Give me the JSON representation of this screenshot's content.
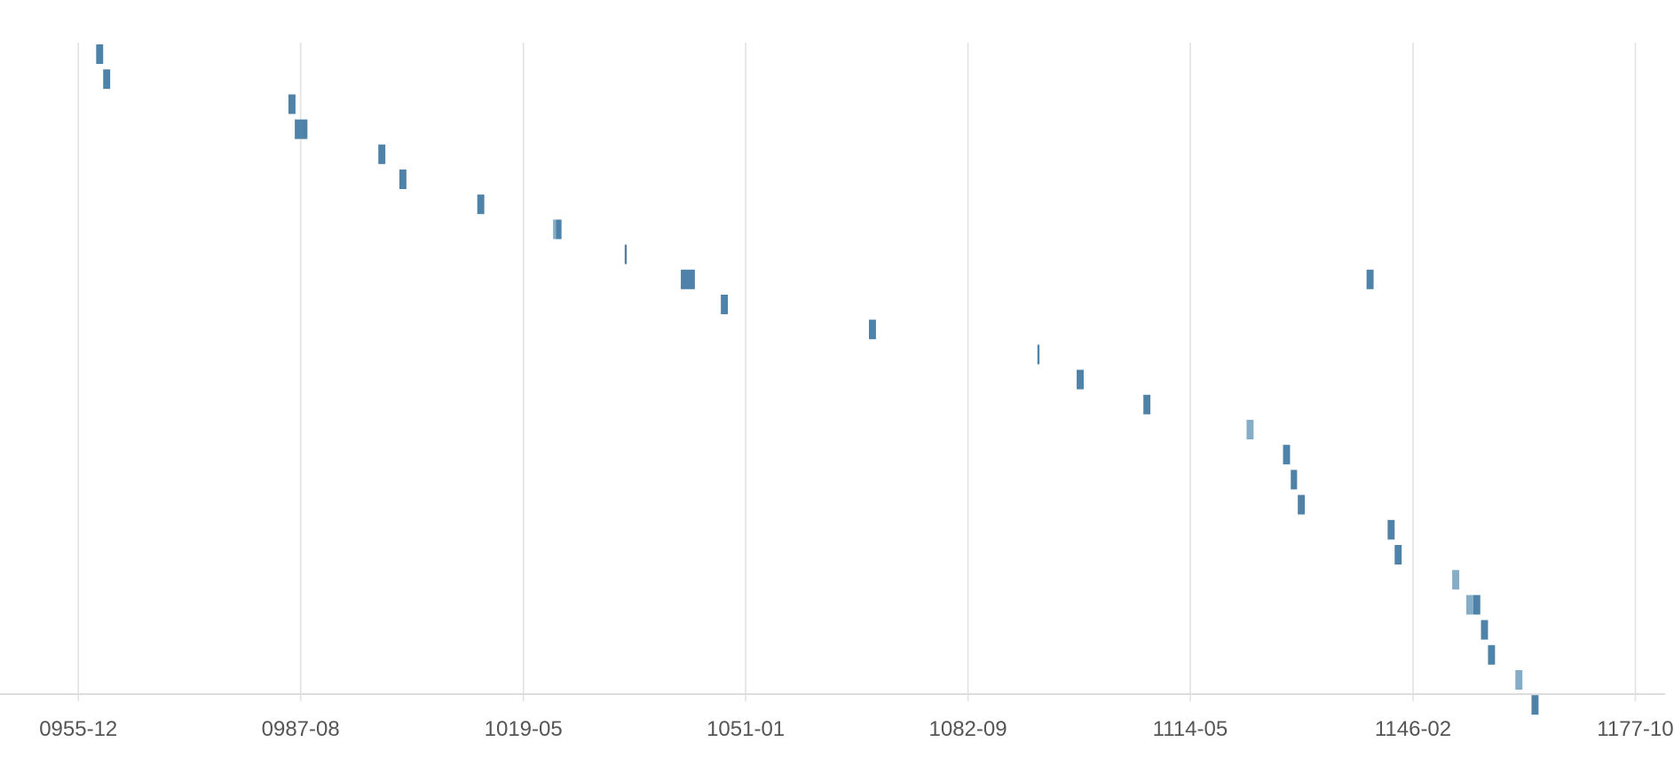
{
  "chart_data": {
    "type": "gantt",
    "title": "",
    "xlabel": "",
    "ylabel": "",
    "x_axis": {
      "unit": "year-month",
      "ticks": [
        "0955-12",
        "0987-08",
        "1019-05",
        "1051-01",
        "1082-09",
        "1114-05",
        "1146-02",
        "1177-10"
      ],
      "tick_values": [
        955.96,
        987.63,
        1019.37,
        1051.04,
        1082.71,
        1114.37,
        1146.12,
        1177.79
      ],
      "range": [
        944.8,
        1183.3
      ]
    },
    "grid": "vertical",
    "legend": "none",
    "colors": {
      "bar": "#4e82a8",
      "bar_light": "#85adc8",
      "grid": "#e2e2e2",
      "tick_text": "#555555"
    },
    "rows": [
      {
        "segments": [
          [
            958.5,
            959.5
          ]
        ]
      },
      {
        "segments": [
          [
            959.5,
            960.5
          ]
        ]
      },
      {
        "segments": [
          [
            985.9,
            986.9
          ]
        ]
      },
      {
        "segments": [
          [
            986.8,
            987.6
          ],
          [
            987.6,
            988.6
          ]
        ]
      },
      {
        "segments": [
          [
            998.7,
            999.7
          ]
        ]
      },
      {
        "segments": [
          [
            1001.7,
            1002.7
          ]
        ]
      },
      {
        "segments": [
          [
            1012.8,
            1013.8
          ]
        ]
      },
      {
        "segments": [
          [
            1023.6,
            1024.0,
            "light"
          ],
          [
            1024.0,
            1024.8
          ]
        ]
      },
      {
        "segments": [
          [
            1033.8,
            1034.1
          ]
        ]
      },
      {
        "segments": [
          [
            1041.8,
            1043.8
          ]
        ]
      },
      {
        "segments": [
          [
            1047.5,
            1048.5
          ]
        ]
      },
      {
        "segments": [
          [
            1068.6,
            1069.6
          ]
        ]
      },
      {
        "segments": [
          [
            1092.6,
            1092.9
          ]
        ]
      },
      {
        "segments": [
          [
            1098.2,
            1099.2
          ]
        ]
      },
      {
        "segments": [
          [
            1107.7,
            1108.7
          ]
        ]
      },
      {
        "segments": [
          [
            1122.4,
            1123.4,
            "light"
          ]
        ]
      },
      {
        "segments": [
          [
            1127.6,
            1128.6
          ]
        ]
      },
      {
        "segments": [
          [
            1128.7,
            1129.6
          ]
        ]
      },
      {
        "segments": [
          [
            1129.7,
            1130.7
          ]
        ]
      },
      {
        "segments": [
          [
            1142.5,
            1143.5
          ]
        ]
      },
      {
        "segments": [
          [
            1143.5,
            1144.5
          ]
        ]
      },
      {
        "segments": [
          [
            1151.7,
            1152.7,
            "light"
          ]
        ]
      },
      {
        "segments": [
          [
            1153.7,
            1154.7,
            "light"
          ],
          [
            1154.7,
            1155.7
          ]
        ]
      },
      {
        "segments": [
          [
            1155.8,
            1156.8
          ]
        ]
      },
      {
        "segments": [
          [
            1156.8,
            1157.8
          ]
        ]
      },
      {
        "segments": [
          [
            1160.7,
            1161.7,
            "light"
          ]
        ]
      },
      {
        "segments": [
          [
            1163.0,
            1164.0
          ]
        ]
      }
    ],
    "extra_marks": [
      {
        "row": 9,
        "segments": [
          [
            1139.5,
            1140.5
          ]
        ]
      }
    ]
  }
}
